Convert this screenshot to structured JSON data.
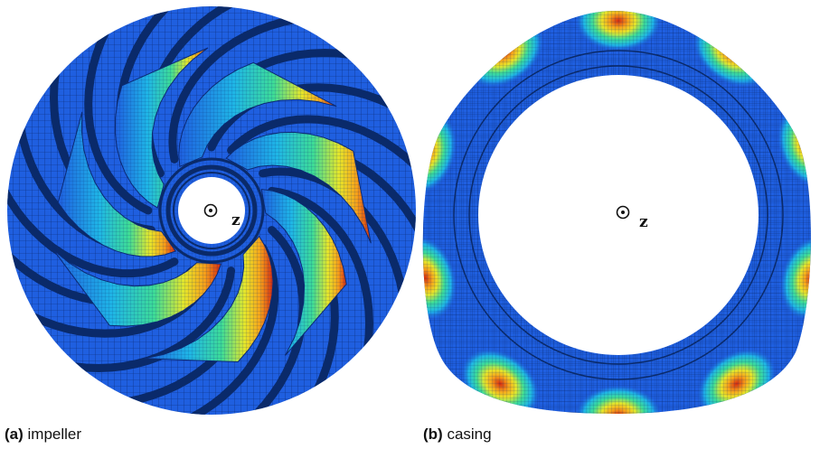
{
  "panel_a": {
    "tag": "(a)",
    "label": "impeller",
    "axis_label": "z",
    "axis_symbol": "out-of-plane-dot-icon"
  },
  "panel_b": {
    "tag": "(b)",
    "label": "casing",
    "axis_label": "z",
    "axis_symbol": "out-of-plane-dot-icon"
  },
  "colors": {
    "base_blue": "#1f5fe0",
    "mesh_line": "#0b2a73",
    "channel_dark": "#0a2a6a",
    "contour_stops": [
      "#1f5fe0",
      "#1fb6e6",
      "#3ddc97",
      "#e6e62a",
      "#f7a31a",
      "#d42a10"
    ]
  }
}
